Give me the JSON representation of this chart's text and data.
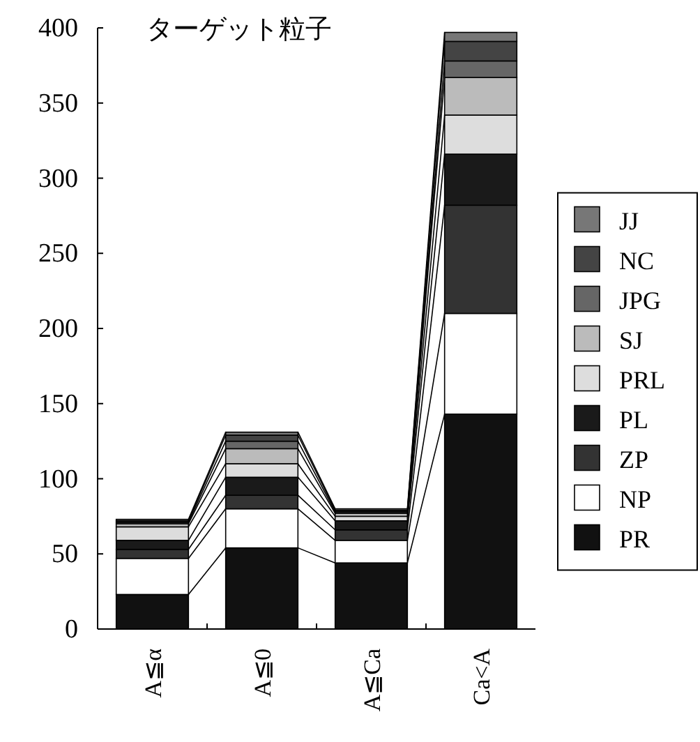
{
  "chart_data": {
    "type": "bar",
    "stacked": true,
    "title": "ターゲット粒子",
    "categories": [
      "A≦α",
      "A≦0",
      "A≦Ca",
      "Ca<A"
    ],
    "series": [
      {
        "name": "PR",
        "color": "#111111",
        "values": [
          23,
          54,
          44,
          143
        ]
      },
      {
        "name": "NP",
        "color": "#ffffff",
        "values": [
          24,
          26,
          15,
          67
        ]
      },
      {
        "name": "ZP",
        "color": "#333333",
        "values": [
          6,
          9,
          7,
          72
        ]
      },
      {
        "name": "PL",
        "color": "#1a1a1a",
        "values": [
          6,
          12,
          6,
          34
        ]
      },
      {
        "name": "PRL",
        "color": "#dddddd",
        "values": [
          9,
          9,
          3,
          26
        ]
      },
      {
        "name": "SJ",
        "color": "#bbbbbb",
        "values": [
          2,
          10,
          2,
          25
        ]
      },
      {
        "name": "JPG",
        "color": "#666666",
        "values": [
          1,
          5,
          1,
          11
        ]
      },
      {
        "name": "NC",
        "color": "#444444",
        "values": [
          1,
          4,
          1,
          13
        ]
      },
      {
        "name": "JJ",
        "color": "#777777",
        "values": [
          1,
          2,
          1,
          6
        ]
      }
    ],
    "ylim": [
      0,
      400
    ],
    "yticks": [
      0,
      50,
      100,
      150,
      200,
      250,
      300,
      350,
      400
    ],
    "legend": "right"
  }
}
